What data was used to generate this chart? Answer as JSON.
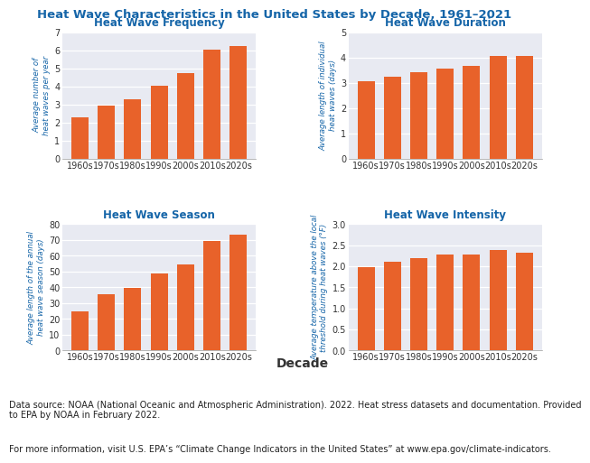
{
  "title": "Heat Wave Characteristics in the United States by Decade, 1961–2021",
  "title_color": "#1565a8",
  "title_fontsize": 9.5,
  "decades": [
    "1960s",
    "1970s",
    "1980s",
    "1990s",
    "2000s",
    "2010s",
    "2020s"
  ],
  "bar_color": "#e8622a",
  "subplots": [
    {
      "title": "Heat Wave Frequency",
      "ylabel": "Average number of\nheat waves per year",
      "ylim": [
        0,
        7
      ],
      "yticks": [
        0,
        1,
        2,
        3,
        4,
        5,
        6,
        7
      ],
      "values": [
        2.27,
        2.95,
        3.3,
        4.05,
        4.73,
        6.05,
        6.22
      ]
    },
    {
      "title": "Heat Wave Duration",
      "ylabel": "Average length of individual\nheat waves (days)",
      "ylim": [
        0,
        5
      ],
      "yticks": [
        0,
        1,
        2,
        3,
        4,
        5
      ],
      "values": [
        3.05,
        3.25,
        3.4,
        3.55,
        3.65,
        4.05,
        4.05
      ]
    },
    {
      "title": "Heat Wave Season",
      "ylabel": "Average length of the annual\nheat wave season (days)",
      "ylim": [
        0,
        80
      ],
      "yticks": [
        0,
        10,
        20,
        30,
        40,
        50,
        60,
        70,
        80
      ],
      "values": [
        25,
        35.5,
        39.5,
        48.5,
        54.5,
        69.5,
        73.5
      ]
    },
    {
      "title": "Heat Wave Intensity",
      "ylabel": "Average temperature above the local\nthreshold during heat waves (°F)",
      "ylim": [
        0.0,
        3.0
      ],
      "yticks": [
        0.0,
        0.5,
        1.0,
        1.5,
        2.0,
        2.5,
        3.0
      ],
      "values": [
        1.98,
        2.1,
        2.2,
        2.28,
        2.28,
        2.38,
        2.33
      ]
    }
  ],
  "xlabel": "Decade",
  "xlabel_fontsize": 10,
  "footnote1": "Data source: NOAA (National Oceanic and Atmospheric Administration). 2022. Heat stress datasets and documentation. Provided\nto EPA by NOAA in February 2022.",
  "footnote2": "For more information, visit U.S. EPA’s “Climate Change Indicators in the United States” at www.epa.gov/climate-indicators.",
  "plot_bg_color": "#e8eaf2",
  "subplot_title_color": "#1565a8",
  "tick_label_color": "#333333",
  "ylabel_color": "#1565a8"
}
